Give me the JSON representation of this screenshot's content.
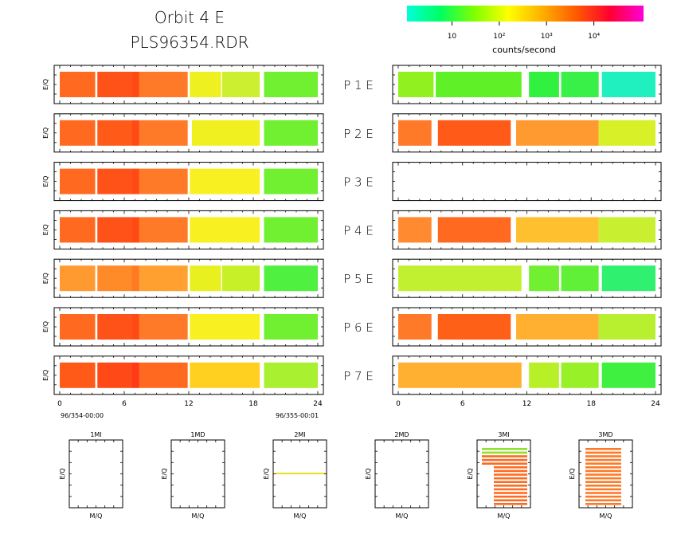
{
  "header": {
    "title_line1": "Orbit  4  E",
    "title_line2": "PLS96354.RDR"
  },
  "colorbar": {
    "units_label": "counts/second",
    "tick_labels": [
      "10",
      "10²",
      "10³",
      "10⁴"
    ],
    "scale": "log",
    "stops": [
      "#00ffd8",
      "#00ff60",
      "#80ff00",
      "#ffff00",
      "#ffb000",
      "#ff5a00",
      "#ff0030",
      "#ff00d8"
    ]
  },
  "chart_data": {
    "type": "heatmap",
    "x_axis": {
      "range": [
        0,
        24
      ],
      "ticks": [
        "0",
        "6",
        "12",
        "18",
        "24"
      ],
      "start_label": "96/354-00:00",
      "end_label": "96/355-00:01"
    },
    "y_axis_label": "E/Q",
    "rows": [
      {
        "label": "P  1  E",
        "left": [
          {
            "from": 0.0,
            "to": 3.3,
            "color": "#ff6a20"
          },
          {
            "from": 3.5,
            "to": 6.7,
            "color": "#ff5218"
          },
          {
            "from": 6.7,
            "to": 7.4,
            "color": "#ff4a14"
          },
          {
            "from": 7.4,
            "to": 11.9,
            "color": "#ff7a28"
          },
          {
            "from": 12.1,
            "to": 15.0,
            "color": "#eef020"
          },
          {
            "from": 15.1,
            "to": 18.6,
            "color": "#ccf030"
          },
          {
            "from": 19.0,
            "to": 24.0,
            "color": "#70f030"
          }
        ],
        "right": [
          {
            "from": 0.0,
            "to": 3.3,
            "color": "#90f020"
          },
          {
            "from": 3.5,
            "to": 11.5,
            "color": "#60f028"
          },
          {
            "from": 12.2,
            "to": 15.0,
            "color": "#30f040"
          },
          {
            "from": 15.2,
            "to": 18.7,
            "color": "#38f048"
          },
          {
            "from": 19.0,
            "to": 24.0,
            "color": "#20f0c0"
          }
        ]
      },
      {
        "label": "P  2  E",
        "left": [
          {
            "from": 0.0,
            "to": 3.3,
            "color": "#ff6a20"
          },
          {
            "from": 3.5,
            "to": 6.7,
            "color": "#ff5a18"
          },
          {
            "from": 6.7,
            "to": 7.4,
            "color": "#ff4a14"
          },
          {
            "from": 7.4,
            "to": 11.9,
            "color": "#ff7a28"
          },
          {
            "from": 12.3,
            "to": 18.6,
            "color": "#f0f020"
          },
          {
            "from": 19.0,
            "to": 24.0,
            "color": "#70f030"
          }
        ],
        "right": [
          {
            "from": 0.0,
            "to": 3.1,
            "color": "#ff7a28"
          },
          {
            "from": 3.7,
            "to": 10.5,
            "color": "#ff5a18"
          },
          {
            "from": 11.0,
            "to": 18.7,
            "color": "#ff9a30"
          },
          {
            "from": 18.7,
            "to": 24.0,
            "color": "#d8f028"
          }
        ]
      },
      {
        "label": "P  3  E",
        "left": [
          {
            "from": 0.0,
            "to": 3.3,
            "color": "#ff6a20"
          },
          {
            "from": 3.5,
            "to": 6.7,
            "color": "#ff5218"
          },
          {
            "from": 6.7,
            "to": 7.4,
            "color": "#ff4a14"
          },
          {
            "from": 7.4,
            "to": 11.9,
            "color": "#ff7a28"
          },
          {
            "from": 12.1,
            "to": 18.6,
            "color": "#f8f020"
          },
          {
            "from": 19.0,
            "to": 24.0,
            "color": "#70f030"
          }
        ],
        "right": []
      },
      {
        "label": "P  4  E",
        "left": [
          {
            "from": 0.0,
            "to": 3.3,
            "color": "#ff6a20"
          },
          {
            "from": 3.5,
            "to": 6.7,
            "color": "#ff5218"
          },
          {
            "from": 6.7,
            "to": 7.4,
            "color": "#ff4a14"
          },
          {
            "from": 7.4,
            "to": 11.9,
            "color": "#ff7a28"
          },
          {
            "from": 12.1,
            "to": 18.6,
            "color": "#f8f020"
          },
          {
            "from": 19.0,
            "to": 24.0,
            "color": "#70f030"
          }
        ],
        "right": [
          {
            "from": 0.0,
            "to": 3.1,
            "color": "#ff8a30"
          },
          {
            "from": 3.7,
            "to": 10.5,
            "color": "#ff6a20"
          },
          {
            "from": 11.0,
            "to": 18.7,
            "color": "#ffc030"
          },
          {
            "from": 18.7,
            "to": 24.0,
            "color": "#c8f030"
          }
        ]
      },
      {
        "label": "P  5  E",
        "left": [
          {
            "from": 0.0,
            "to": 3.3,
            "color": "#ff9a30"
          },
          {
            "from": 3.5,
            "to": 6.7,
            "color": "#ff8a28"
          },
          {
            "from": 6.7,
            "to": 7.4,
            "color": "#ff7a20"
          },
          {
            "from": 7.4,
            "to": 11.9,
            "color": "#ffa030"
          },
          {
            "from": 12.1,
            "to": 15.0,
            "color": "#e8f020"
          },
          {
            "from": 15.1,
            "to": 18.6,
            "color": "#c8f028"
          },
          {
            "from": 19.0,
            "to": 24.0,
            "color": "#50f040"
          }
        ],
        "right": [
          {
            "from": 0.0,
            "to": 11.5,
            "color": "#c0f030"
          },
          {
            "from": 12.2,
            "to": 15.0,
            "color": "#70f030"
          },
          {
            "from": 15.2,
            "to": 18.7,
            "color": "#60f038"
          },
          {
            "from": 19.0,
            "to": 24.0,
            "color": "#30f070"
          }
        ]
      },
      {
        "label": "P  6  E",
        "left": [
          {
            "from": 0.0,
            "to": 3.3,
            "color": "#ff6a20"
          },
          {
            "from": 3.5,
            "to": 6.7,
            "color": "#ff5218"
          },
          {
            "from": 6.7,
            "to": 7.4,
            "color": "#ff4a14"
          },
          {
            "from": 7.4,
            "to": 11.9,
            "color": "#ff7a28"
          },
          {
            "from": 12.1,
            "to": 18.6,
            "color": "#f8f020"
          },
          {
            "from": 19.0,
            "to": 24.0,
            "color": "#70f030"
          }
        ],
        "right": [
          {
            "from": 0.0,
            "to": 3.1,
            "color": "#ff7a28"
          },
          {
            "from": 3.7,
            "to": 10.5,
            "color": "#ff6018"
          },
          {
            "from": 11.0,
            "to": 18.7,
            "color": "#ffb030"
          },
          {
            "from": 18.7,
            "to": 24.0,
            "color": "#b8f030"
          }
        ]
      },
      {
        "label": "P  7  E",
        "left": [
          {
            "from": 0.0,
            "to": 3.3,
            "color": "#ff5a18"
          },
          {
            "from": 3.5,
            "to": 6.7,
            "color": "#ff4a18"
          },
          {
            "from": 6.7,
            "to": 7.4,
            "color": "#ff3a14"
          },
          {
            "from": 7.4,
            "to": 11.9,
            "color": "#ff6a20"
          },
          {
            "from": 12.1,
            "to": 18.6,
            "color": "#ffd020"
          },
          {
            "from": 19.0,
            "to": 24.0,
            "color": "#a8f030"
          }
        ],
        "right": [
          {
            "from": 0.0,
            "to": 11.5,
            "color": "#ffb030"
          },
          {
            "from": 12.2,
            "to": 15.0,
            "color": "#b8f028"
          },
          {
            "from": 15.2,
            "to": 18.7,
            "color": "#98f028"
          },
          {
            "from": 19.0,
            "to": 24.0,
            "color": "#40f040"
          }
        ]
      }
    ],
    "mini_panels": [
      {
        "title": "1MI",
        "xlabel": "M/Q",
        "ylabel": "E/Q"
      },
      {
        "title": "1MD",
        "xlabel": "M/Q",
        "ylabel": "E/Q"
      },
      {
        "title": "2MI",
        "xlabel": "M/Q",
        "ylabel": "E/Q"
      },
      {
        "title": "2MD",
        "xlabel": "M/Q",
        "ylabel": "E/Q"
      },
      {
        "title": "3MI",
        "xlabel": "M/Q",
        "ylabel": "E/Q"
      },
      {
        "title": "3MD",
        "xlabel": "M/Q",
        "ylabel": "E/Q"
      }
    ]
  }
}
